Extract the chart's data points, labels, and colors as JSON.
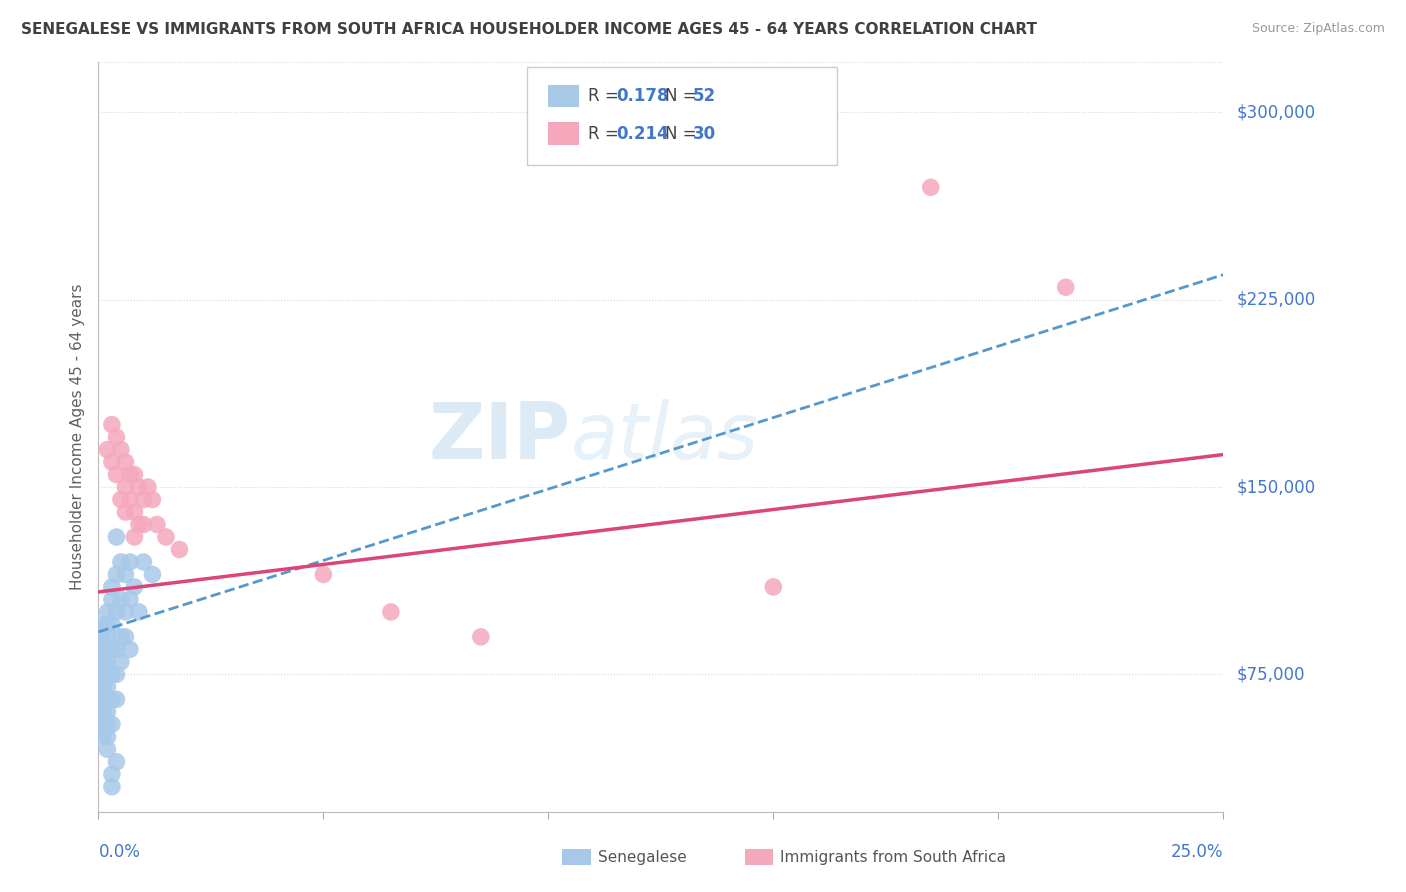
{
  "title": "SENEGALESE VS IMMIGRANTS FROM SOUTH AFRICA HOUSEHOLDER INCOME AGES 45 - 64 YEARS CORRELATION CHART",
  "source": "Source: ZipAtlas.com",
  "ylabel": "Householder Income Ages 45 - 64 years",
  "xlim": [
    0.0,
    0.25
  ],
  "ylim": [
    20000,
    320000
  ],
  "yticks": [
    75000,
    150000,
    225000,
    300000
  ],
  "ytick_labels": [
    "$75,000",
    "$150,000",
    "$225,000",
    "$300,000"
  ],
  "xticks": [
    0.0,
    0.05,
    0.1,
    0.15,
    0.2,
    0.25
  ],
  "watermark_zip": "ZIP",
  "watermark_atlas": "atlas",
  "legend_blue_R": "0.178",
  "legend_blue_N": "52",
  "legend_pink_R": "0.214",
  "legend_pink_N": "30",
  "legend_label_blue": "Senegalese",
  "legend_label_pink": "Immigrants from South Africa",
  "blue_color": "#a8c8e8",
  "pink_color": "#f5a8bc",
  "blue_line_color": "#5599cc",
  "pink_line_color": "#dd4477",
  "blue_scatter": [
    [
      0.001,
      95000
    ],
    [
      0.001,
      90000
    ],
    [
      0.001,
      85000
    ],
    [
      0.001,
      80000
    ],
    [
      0.001,
      75000
    ],
    [
      0.001,
      70000
    ],
    [
      0.001,
      65000
    ],
    [
      0.001,
      60000
    ],
    [
      0.001,
      55000
    ],
    [
      0.001,
      50000
    ],
    [
      0.002,
      100000
    ],
    [
      0.002,
      95000
    ],
    [
      0.002,
      90000
    ],
    [
      0.002,
      85000
    ],
    [
      0.002,
      80000
    ],
    [
      0.002,
      75000
    ],
    [
      0.002,
      70000
    ],
    [
      0.002,
      65000
    ],
    [
      0.002,
      60000
    ],
    [
      0.002,
      55000
    ],
    [
      0.002,
      50000
    ],
    [
      0.002,
      45000
    ],
    [
      0.003,
      110000
    ],
    [
      0.003,
      105000
    ],
    [
      0.003,
      95000
    ],
    [
      0.003,
      85000
    ],
    [
      0.003,
      75000
    ],
    [
      0.003,
      65000
    ],
    [
      0.003,
      55000
    ],
    [
      0.004,
      130000
    ],
    [
      0.004,
      115000
    ],
    [
      0.004,
      100000
    ],
    [
      0.004,
      85000
    ],
    [
      0.004,
      75000
    ],
    [
      0.004,
      65000
    ],
    [
      0.005,
      120000
    ],
    [
      0.005,
      105000
    ],
    [
      0.005,
      90000
    ],
    [
      0.005,
      80000
    ],
    [
      0.006,
      115000
    ],
    [
      0.006,
      100000
    ],
    [
      0.006,
      90000
    ],
    [
      0.007,
      120000
    ],
    [
      0.007,
      105000
    ],
    [
      0.007,
      85000
    ],
    [
      0.008,
      110000
    ],
    [
      0.009,
      100000
    ],
    [
      0.01,
      120000
    ],
    [
      0.012,
      115000
    ],
    [
      0.004,
      40000
    ],
    [
      0.003,
      35000
    ],
    [
      0.003,
      30000
    ]
  ],
  "pink_scatter": [
    [
      0.002,
      165000
    ],
    [
      0.003,
      175000
    ],
    [
      0.003,
      160000
    ],
    [
      0.004,
      170000
    ],
    [
      0.004,
      155000
    ],
    [
      0.005,
      165000
    ],
    [
      0.005,
      145000
    ],
    [
      0.006,
      160000
    ],
    [
      0.006,
      150000
    ],
    [
      0.006,
      140000
    ],
    [
      0.007,
      155000
    ],
    [
      0.007,
      145000
    ],
    [
      0.008,
      155000
    ],
    [
      0.008,
      140000
    ],
    [
      0.008,
      130000
    ],
    [
      0.009,
      150000
    ],
    [
      0.009,
      135000
    ],
    [
      0.01,
      145000
    ],
    [
      0.01,
      135000
    ],
    [
      0.011,
      150000
    ],
    [
      0.012,
      145000
    ],
    [
      0.013,
      135000
    ],
    [
      0.015,
      130000
    ],
    [
      0.018,
      125000
    ],
    [
      0.05,
      115000
    ],
    [
      0.065,
      100000
    ],
    [
      0.085,
      90000
    ],
    [
      0.15,
      110000
    ],
    [
      0.185,
      270000
    ],
    [
      0.215,
      230000
    ]
  ],
  "blue_trend": [
    0.0,
    92000,
    0.25,
    235000
  ],
  "pink_trend": [
    0.0,
    108000,
    0.25,
    163000
  ],
  "background_color": "#ffffff",
  "grid_color": "#d8d8d8",
  "grid_linestyle": "dotted",
  "title_color": "#404040",
  "axis_label_color": "#4477cc"
}
